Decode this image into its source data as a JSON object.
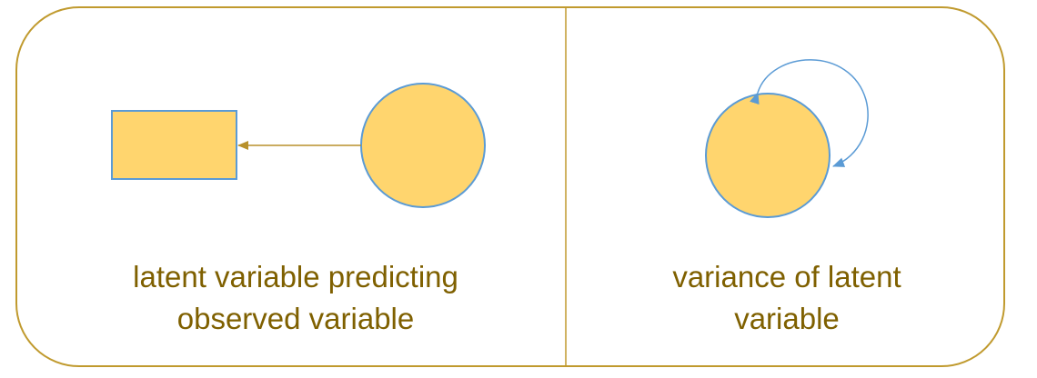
{
  "colors": {
    "frame": "#C09A2E",
    "node_fill": "#FFD56E",
    "node_stroke": "#5B9BD5",
    "arrow_path": "#B8912B",
    "variance_arrow": "#5B9BD5",
    "caption_text": "#7F6000"
  },
  "panels": {
    "left": {
      "caption_line1": "latent variable predicting",
      "caption_line2": "observed variable"
    },
    "right": {
      "caption_line1": "variance of latent",
      "caption_line2": "variable"
    }
  }
}
